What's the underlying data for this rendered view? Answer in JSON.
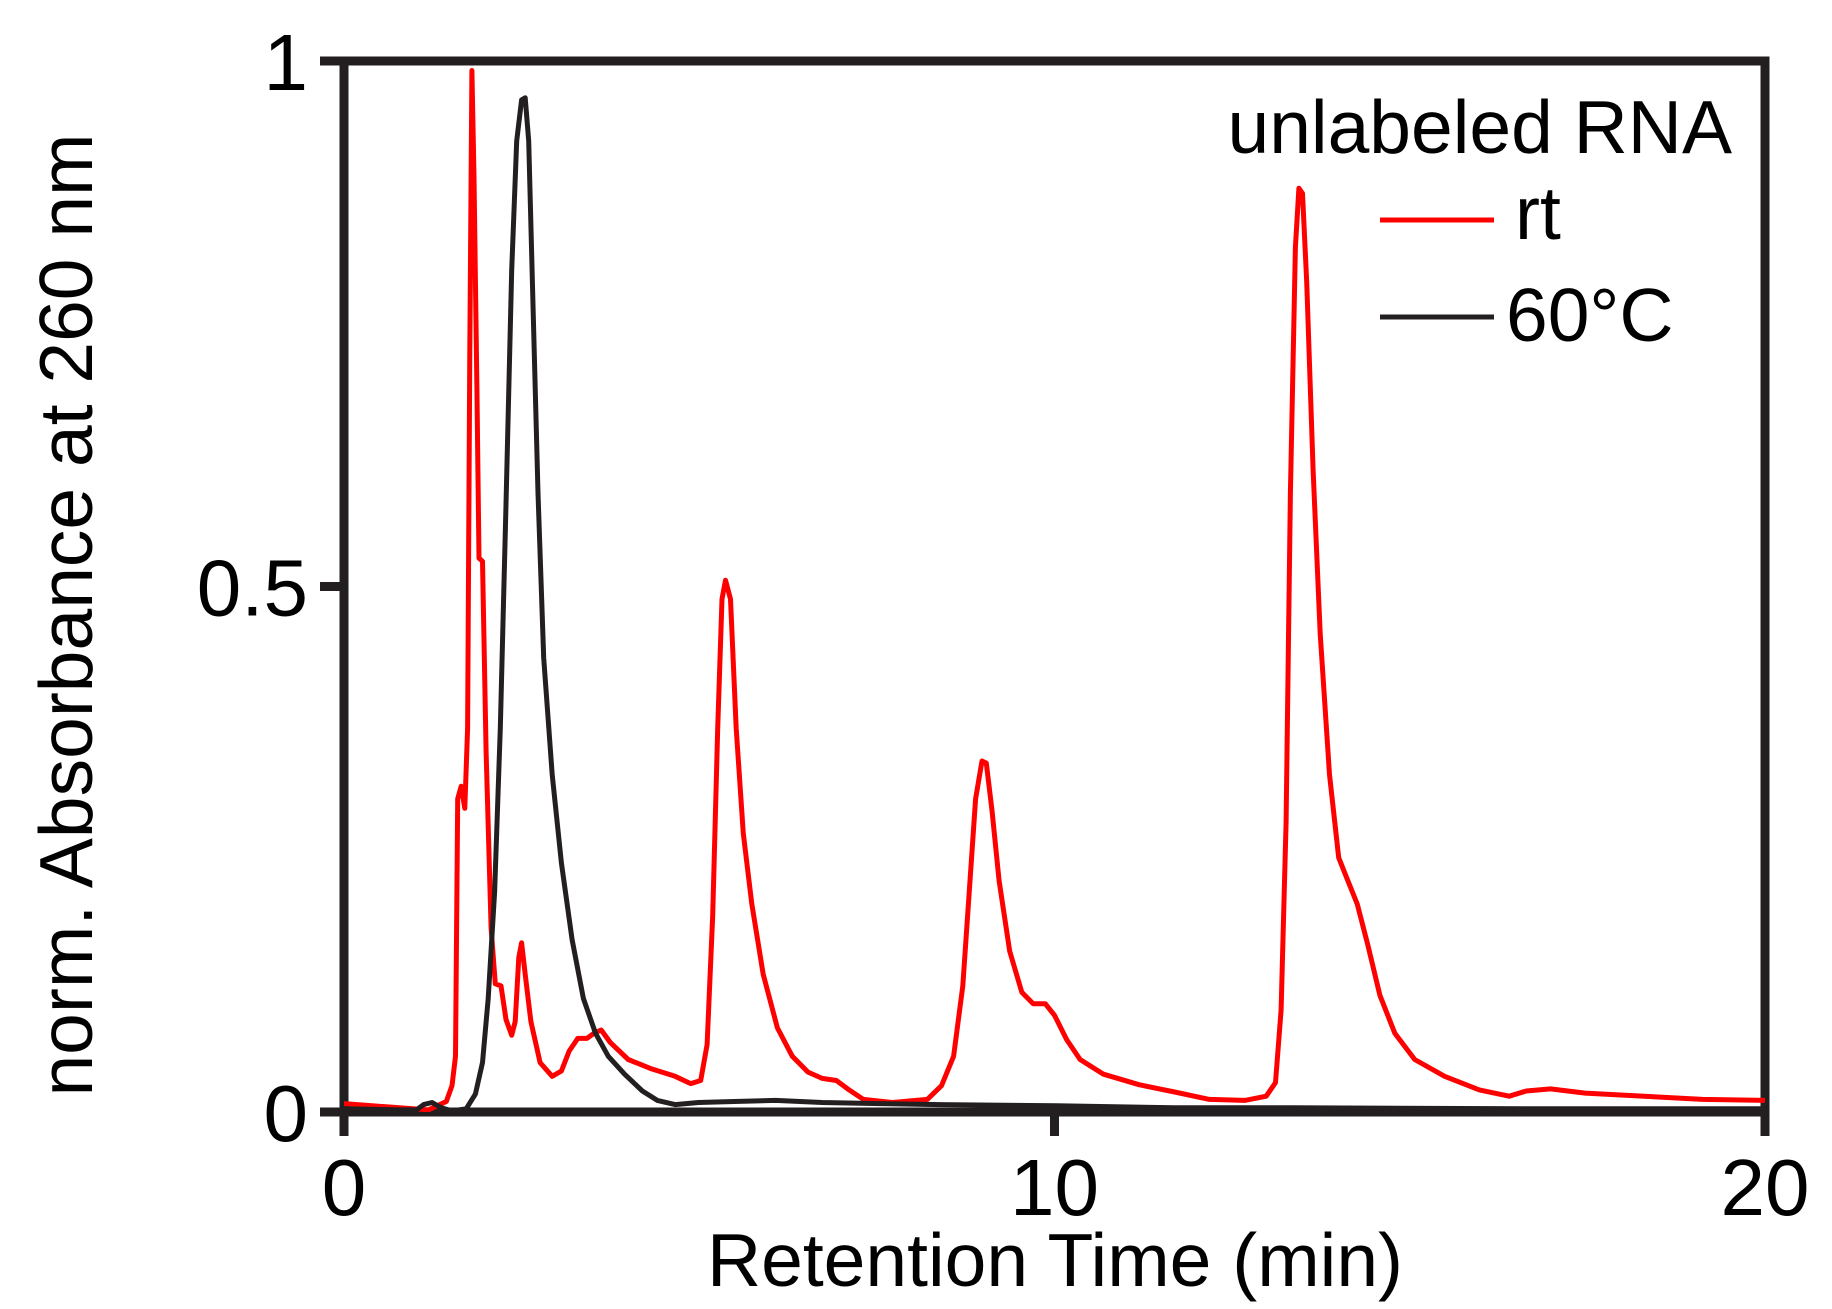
{
  "chart_data": {
    "type": "line",
    "xlabel": "Retention Time (min)",
    "ylabel": "norm. Absorbance at 260 nm",
    "xlim": [
      0,
      20
    ],
    "ylim": [
      0,
      1
    ],
    "xticks": [
      0,
      10,
      20
    ],
    "xtick_labels": [
      "0",
      "10",
      "20"
    ],
    "yticks": [
      0,
      0.5,
      1
    ],
    "ytick_labels": [
      "0",
      "0.5",
      "1"
    ],
    "grid": false,
    "axis_color": "#231f20",
    "legend": {
      "title": "unlabeled RNA",
      "position": "top-right"
    },
    "series": [
      {
        "name": "rt",
        "color": "#ff0000",
        "points": [
          [
            0,
            0.008
          ],
          [
            0.78,
            0.004
          ],
          [
            1.19,
            0.002
          ],
          [
            1.44,
            0.01
          ],
          [
            1.52,
            0.025
          ],
          [
            1.57,
            0.053
          ],
          [
            1.6,
            0.298
          ],
          [
            1.65,
            0.31
          ],
          [
            1.7,
            0.289
          ],
          [
            1.74,
            0.365
          ],
          [
            1.77,
            0.723
          ],
          [
            1.8,
            0.991
          ],
          [
            1.83,
            0.89
          ],
          [
            1.87,
            0.689
          ],
          [
            1.9,
            0.527
          ],
          [
            1.95,
            0.524
          ],
          [
            2.0,
            0.343
          ],
          [
            2.07,
            0.175
          ],
          [
            2.13,
            0.122
          ],
          [
            2.21,
            0.12
          ],
          [
            2.28,
            0.088
          ],
          [
            2.36,
            0.073
          ],
          [
            2.41,
            0.086
          ],
          [
            2.46,
            0.147
          ],
          [
            2.5,
            0.161
          ],
          [
            2.55,
            0.131
          ],
          [
            2.63,
            0.086
          ],
          [
            2.76,
            0.047
          ],
          [
            2.93,
            0.034
          ],
          [
            3.06,
            0.039
          ],
          [
            3.17,
            0.058
          ],
          [
            3.29,
            0.07
          ],
          [
            3.42,
            0.07
          ],
          [
            3.52,
            0.075
          ],
          [
            3.62,
            0.078
          ],
          [
            3.75,
            0.066
          ],
          [
            4.0,
            0.05
          ],
          [
            4.33,
            0.041
          ],
          [
            4.66,
            0.034
          ],
          [
            4.88,
            0.027
          ],
          [
            5.02,
            0.03
          ],
          [
            5.11,
            0.064
          ],
          [
            5.19,
            0.187
          ],
          [
            5.26,
            0.365
          ],
          [
            5.32,
            0.488
          ],
          [
            5.37,
            0.506
          ],
          [
            5.44,
            0.488
          ],
          [
            5.52,
            0.365
          ],
          [
            5.62,
            0.265
          ],
          [
            5.74,
            0.198
          ],
          [
            5.9,
            0.131
          ],
          [
            6.1,
            0.08
          ],
          [
            6.31,
            0.053
          ],
          [
            6.53,
            0.038
          ],
          [
            6.73,
            0.032
          ],
          [
            6.93,
            0.03
          ],
          [
            7.09,
            0.022
          ],
          [
            7.31,
            0.012
          ],
          [
            7.72,
            0.009
          ],
          [
            8.21,
            0.012
          ],
          [
            8.41,
            0.025
          ],
          [
            8.58,
            0.053
          ],
          [
            8.71,
            0.12
          ],
          [
            8.81,
            0.22
          ],
          [
            8.89,
            0.298
          ],
          [
            8.98,
            0.334
          ],
          [
            9.04,
            0.332
          ],
          [
            9.12,
            0.287
          ],
          [
            9.22,
            0.22
          ],
          [
            9.37,
            0.153
          ],
          [
            9.54,
            0.114
          ],
          [
            9.7,
            0.103
          ],
          [
            9.87,
            0.103
          ],
          [
            10.0,
            0.092
          ],
          [
            10.17,
            0.069
          ],
          [
            10.36,
            0.05
          ],
          [
            10.69,
            0.036
          ],
          [
            11.19,
            0.026
          ],
          [
            11.69,
            0.019
          ],
          [
            12.18,
            0.012
          ],
          [
            12.68,
            0.011
          ],
          [
            12.98,
            0.015
          ],
          [
            13.11,
            0.028
          ],
          [
            13.19,
            0.097
          ],
          [
            13.26,
            0.276
          ],
          [
            13.32,
            0.589
          ],
          [
            13.39,
            0.823
          ],
          [
            13.44,
            0.879
          ],
          [
            13.49,
            0.874
          ],
          [
            13.55,
            0.79
          ],
          [
            13.64,
            0.611
          ],
          [
            13.74,
            0.455
          ],
          [
            13.87,
            0.321
          ],
          [
            14.0,
            0.242
          ],
          [
            14.13,
            0.22
          ],
          [
            14.26,
            0.198
          ],
          [
            14.41,
            0.159
          ],
          [
            14.58,
            0.111
          ],
          [
            14.79,
            0.075
          ],
          [
            15.07,
            0.05
          ],
          [
            15.49,
            0.034
          ],
          [
            15.98,
            0.021
          ],
          [
            16.4,
            0.015
          ],
          [
            16.64,
            0.02
          ],
          [
            16.98,
            0.022
          ],
          [
            17.47,
            0.018
          ],
          [
            18.3,
            0.015
          ],
          [
            19.12,
            0.012
          ],
          [
            20.0,
            0.011
          ]
        ]
      },
      {
        "name": "60°C",
        "color": "#231f20",
        "points": [
          [
            0,
            0.003
          ],
          [
            0.78,
            0.002
          ],
          [
            1.02,
            0.002
          ],
          [
            1.12,
            0.007
          ],
          [
            1.24,
            0.009
          ],
          [
            1.37,
            0.004
          ],
          [
            1.52,
            0.001
          ],
          [
            1.72,
            0.003
          ],
          [
            1.85,
            0.017
          ],
          [
            1.95,
            0.047
          ],
          [
            2.03,
            0.108
          ],
          [
            2.12,
            0.209
          ],
          [
            2.2,
            0.365
          ],
          [
            2.28,
            0.578
          ],
          [
            2.36,
            0.801
          ],
          [
            2.43,
            0.924
          ],
          [
            2.5,
            0.963
          ],
          [
            2.55,
            0.965
          ],
          [
            2.6,
            0.924
          ],
          [
            2.66,
            0.768
          ],
          [
            2.73,
            0.589
          ],
          [
            2.81,
            0.432
          ],
          [
            2.93,
            0.321
          ],
          [
            3.06,
            0.237
          ],
          [
            3.21,
            0.164
          ],
          [
            3.37,
            0.108
          ],
          [
            3.54,
            0.075
          ],
          [
            3.72,
            0.053
          ],
          [
            3.95,
            0.036
          ],
          [
            4.2,
            0.02
          ],
          [
            4.41,
            0.011
          ],
          [
            4.66,
            0.007
          ],
          [
            4.99,
            0.009
          ],
          [
            5.49,
            0.01
          ],
          [
            6.07,
            0.011
          ],
          [
            6.73,
            0.009
          ],
          [
            7.55,
            0.008
          ],
          [
            8.38,
            0.007
          ],
          [
            10.03,
            0.006
          ],
          [
            11.69,
            0.004
          ],
          [
            13.34,
            0.004
          ],
          [
            16.64,
            0.003
          ],
          [
            20.0,
            0.003
          ]
        ]
      }
    ]
  }
}
